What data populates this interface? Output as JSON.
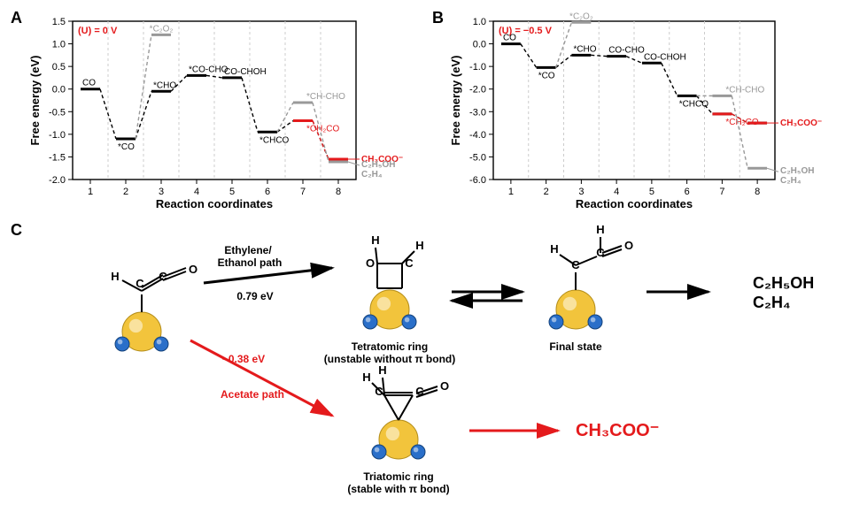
{
  "panelA": {
    "label": "A",
    "condition": "(U) = 0 V",
    "x_title": "Reaction coordinates",
    "y_title": "Free energy (eV)",
    "x_ticks": [
      1,
      2,
      3,
      4,
      5,
      6,
      7,
      8
    ],
    "y_ticks": [
      -2.0,
      -1.5,
      -1.0,
      -0.5,
      0.0,
      0.5,
      1.0,
      1.5
    ],
    "y_min": -2.0,
    "y_max": 1.5,
    "main_path": [
      0.0,
      -1.1,
      -0.05,
      0.3,
      0.25,
      -0.95,
      -0.7,
      -1.55
    ],
    "main_color": "#000000",
    "branch7": -0.3,
    "branch_color": "#999999",
    "red7": -0.7,
    "red_color": "#e41a1c",
    "c2o2_level": 1.2,
    "species": {
      "1": "CO",
      "2": "*CO",
      "3": "*CHO",
      "3b": "*C₂O₂",
      "4": "*CO-CHO",
      "5": "CO-CHOH",
      "6": "*CHCO",
      "7g": "*CH-CHO",
      "7r": "*CH₂CO"
    },
    "products": {
      "red": "CH₃COO⁻",
      "g1": "C₂H₅OH",
      "g2": "C₂H₄"
    }
  },
  "panelB": {
    "label": "B",
    "condition": "(U) = −0.5 V",
    "x_title": "Reaction coordinates",
    "y_title": "Free energy (eV)",
    "x_ticks": [
      1,
      2,
      3,
      4,
      5,
      6,
      7,
      8
    ],
    "y_ticks": [
      -6,
      -5,
      -4,
      -3,
      -2,
      -1,
      0,
      1
    ],
    "y_min": -6,
    "y_max": 1,
    "main_path": [
      0.0,
      -1.05,
      -0.5,
      -0.55,
      -0.85,
      -2.3,
      -3.1,
      -3.5
    ],
    "main_color": "#000000",
    "branch7": -2.3,
    "branch8": -5.5,
    "branch_color": "#999999",
    "red7": -3.1,
    "red_color": "#e41a1c",
    "c2o2_level": 0.95,
    "species": {
      "1": "CO",
      "2": "*CO",
      "3": "*CHO",
      "3b": "*C₂O₂",
      "4": "CO-CHO",
      "5": "CO-CHOH",
      "6": "*CHCO",
      "7g": "*CH-CHO",
      "7r": "*CH₂CO"
    },
    "products": {
      "red": "CH₃COO⁻",
      "g1": "C₂H₅OH",
      "g2": "C₂H₄"
    }
  },
  "panelC": {
    "label": "C",
    "top_path_label_a": "Ethylene/",
    "top_path_label_b": "Ethanol path",
    "top_energy": "0.79 eV",
    "bot_path_label": "Acetate path",
    "bot_energy": "−0.38 eV",
    "left_label": "",
    "mid_top_label_a": "Tetratomic ring",
    "mid_top_label_b": "(unstable without π bond)",
    "mid_top2_label": "Final state",
    "right_top_prod_a": "C₂H₅OH",
    "right_top_prod_b": "C₂H₄",
    "bot_mid_label_a": "Triatomic ring",
    "bot_mid_label_b": "(stable with π bond)",
    "bot_prod": "CH₃COO⁻",
    "colors": {
      "black": "#000000",
      "red": "#e41a1c",
      "au": "#f2c43c",
      "cu": "#2a6fc9",
      "o_red": "#c0392b",
      "c_dark": "#333333"
    }
  }
}
